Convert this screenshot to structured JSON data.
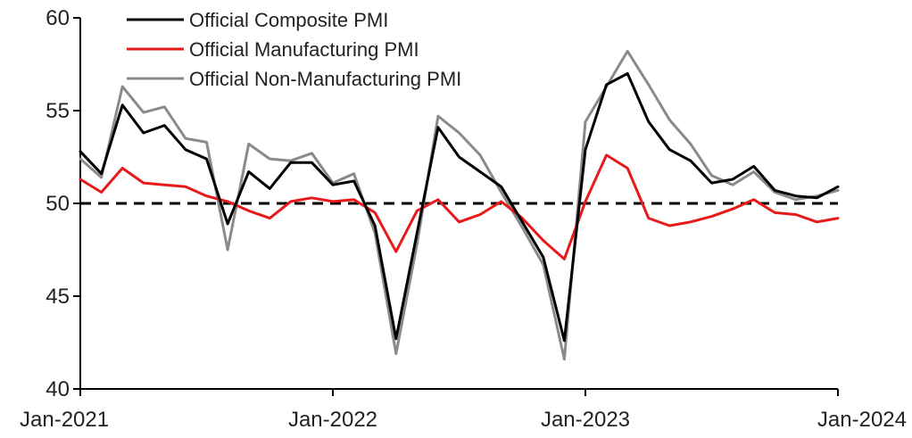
{
  "chart_data": {
    "type": "line",
    "x": [
      "2021-01",
      "2021-02",
      "2021-03",
      "2021-04",
      "2021-05",
      "2021-06",
      "2021-07",
      "2021-08",
      "2021-09",
      "2021-10",
      "2021-11",
      "2021-12",
      "2022-01",
      "2022-02",
      "2022-03",
      "2022-04",
      "2022-05",
      "2022-06",
      "2022-07",
      "2022-08",
      "2022-09",
      "2022-10",
      "2022-11",
      "2022-12",
      "2023-01",
      "2023-02",
      "2023-03",
      "2023-04",
      "2023-05",
      "2023-06",
      "2023-07",
      "2023-08",
      "2023-09",
      "2023-10",
      "2023-11",
      "2023-12",
      "2024-01"
    ],
    "series": [
      {
        "name": "Official Composite PMI",
        "color": "#000000",
        "values": [
          52.8,
          51.6,
          55.3,
          53.8,
          54.2,
          52.9,
          52.4,
          48.9,
          51.7,
          50.8,
          52.2,
          52.2,
          51.0,
          51.2,
          48.8,
          42.7,
          48.4,
          54.1,
          52.5,
          51.7,
          50.9,
          49.0,
          47.1,
          42.6,
          52.9,
          56.4,
          57.0,
          54.4,
          52.9,
          52.3,
          51.1,
          51.3,
          52.0,
          50.7,
          50.4,
          50.3,
          50.9
        ]
      },
      {
        "name": "Official Manufacturing PMI",
        "color": "#e8191b",
        "values": [
          51.3,
          50.6,
          51.9,
          51.1,
          51.0,
          50.9,
          50.4,
          50.1,
          49.6,
          49.2,
          50.1,
          50.3,
          50.1,
          50.2,
          49.5,
          47.4,
          49.6,
          50.2,
          49.0,
          49.4,
          50.1,
          49.2,
          48.0,
          47.0,
          50.1,
          52.6,
          51.9,
          49.2,
          48.8,
          49.0,
          49.3,
          49.7,
          50.2,
          49.5,
          49.4,
          49.0,
          49.2
        ]
      },
      {
        "name": "Official Non-Manufacturing PMI",
        "color": "#8a8a8a",
        "values": [
          52.4,
          51.4,
          56.3,
          54.9,
          55.2,
          53.5,
          53.3,
          47.5,
          53.2,
          52.4,
          52.3,
          52.7,
          51.1,
          51.6,
          48.4,
          41.9,
          47.8,
          54.7,
          53.8,
          52.6,
          50.6,
          48.7,
          46.7,
          41.6,
          54.4,
          56.3,
          58.2,
          56.4,
          54.5,
          53.2,
          51.5,
          51.0,
          51.7,
          50.6,
          50.2,
          50.4,
          50.7
        ]
      }
    ],
    "reference_line": {
      "value": 50,
      "style": "dashed",
      "color": "#000000"
    },
    "x_ticks": [
      {
        "label": "Jan-2021",
        "index": 0
      },
      {
        "label": "Jan-2022",
        "index": 12
      },
      {
        "label": "Jan-2023",
        "index": 24
      },
      {
        "label": "Jan-2024",
        "index": 36
      }
    ],
    "y_ticks": [
      "40",
      "45",
      "50",
      "55",
      "60"
    ],
    "ylim": [
      40,
      60
    ],
    "legend_position": "top",
    "grid": false,
    "title": "",
    "xlabel": "",
    "ylabel": ""
  }
}
